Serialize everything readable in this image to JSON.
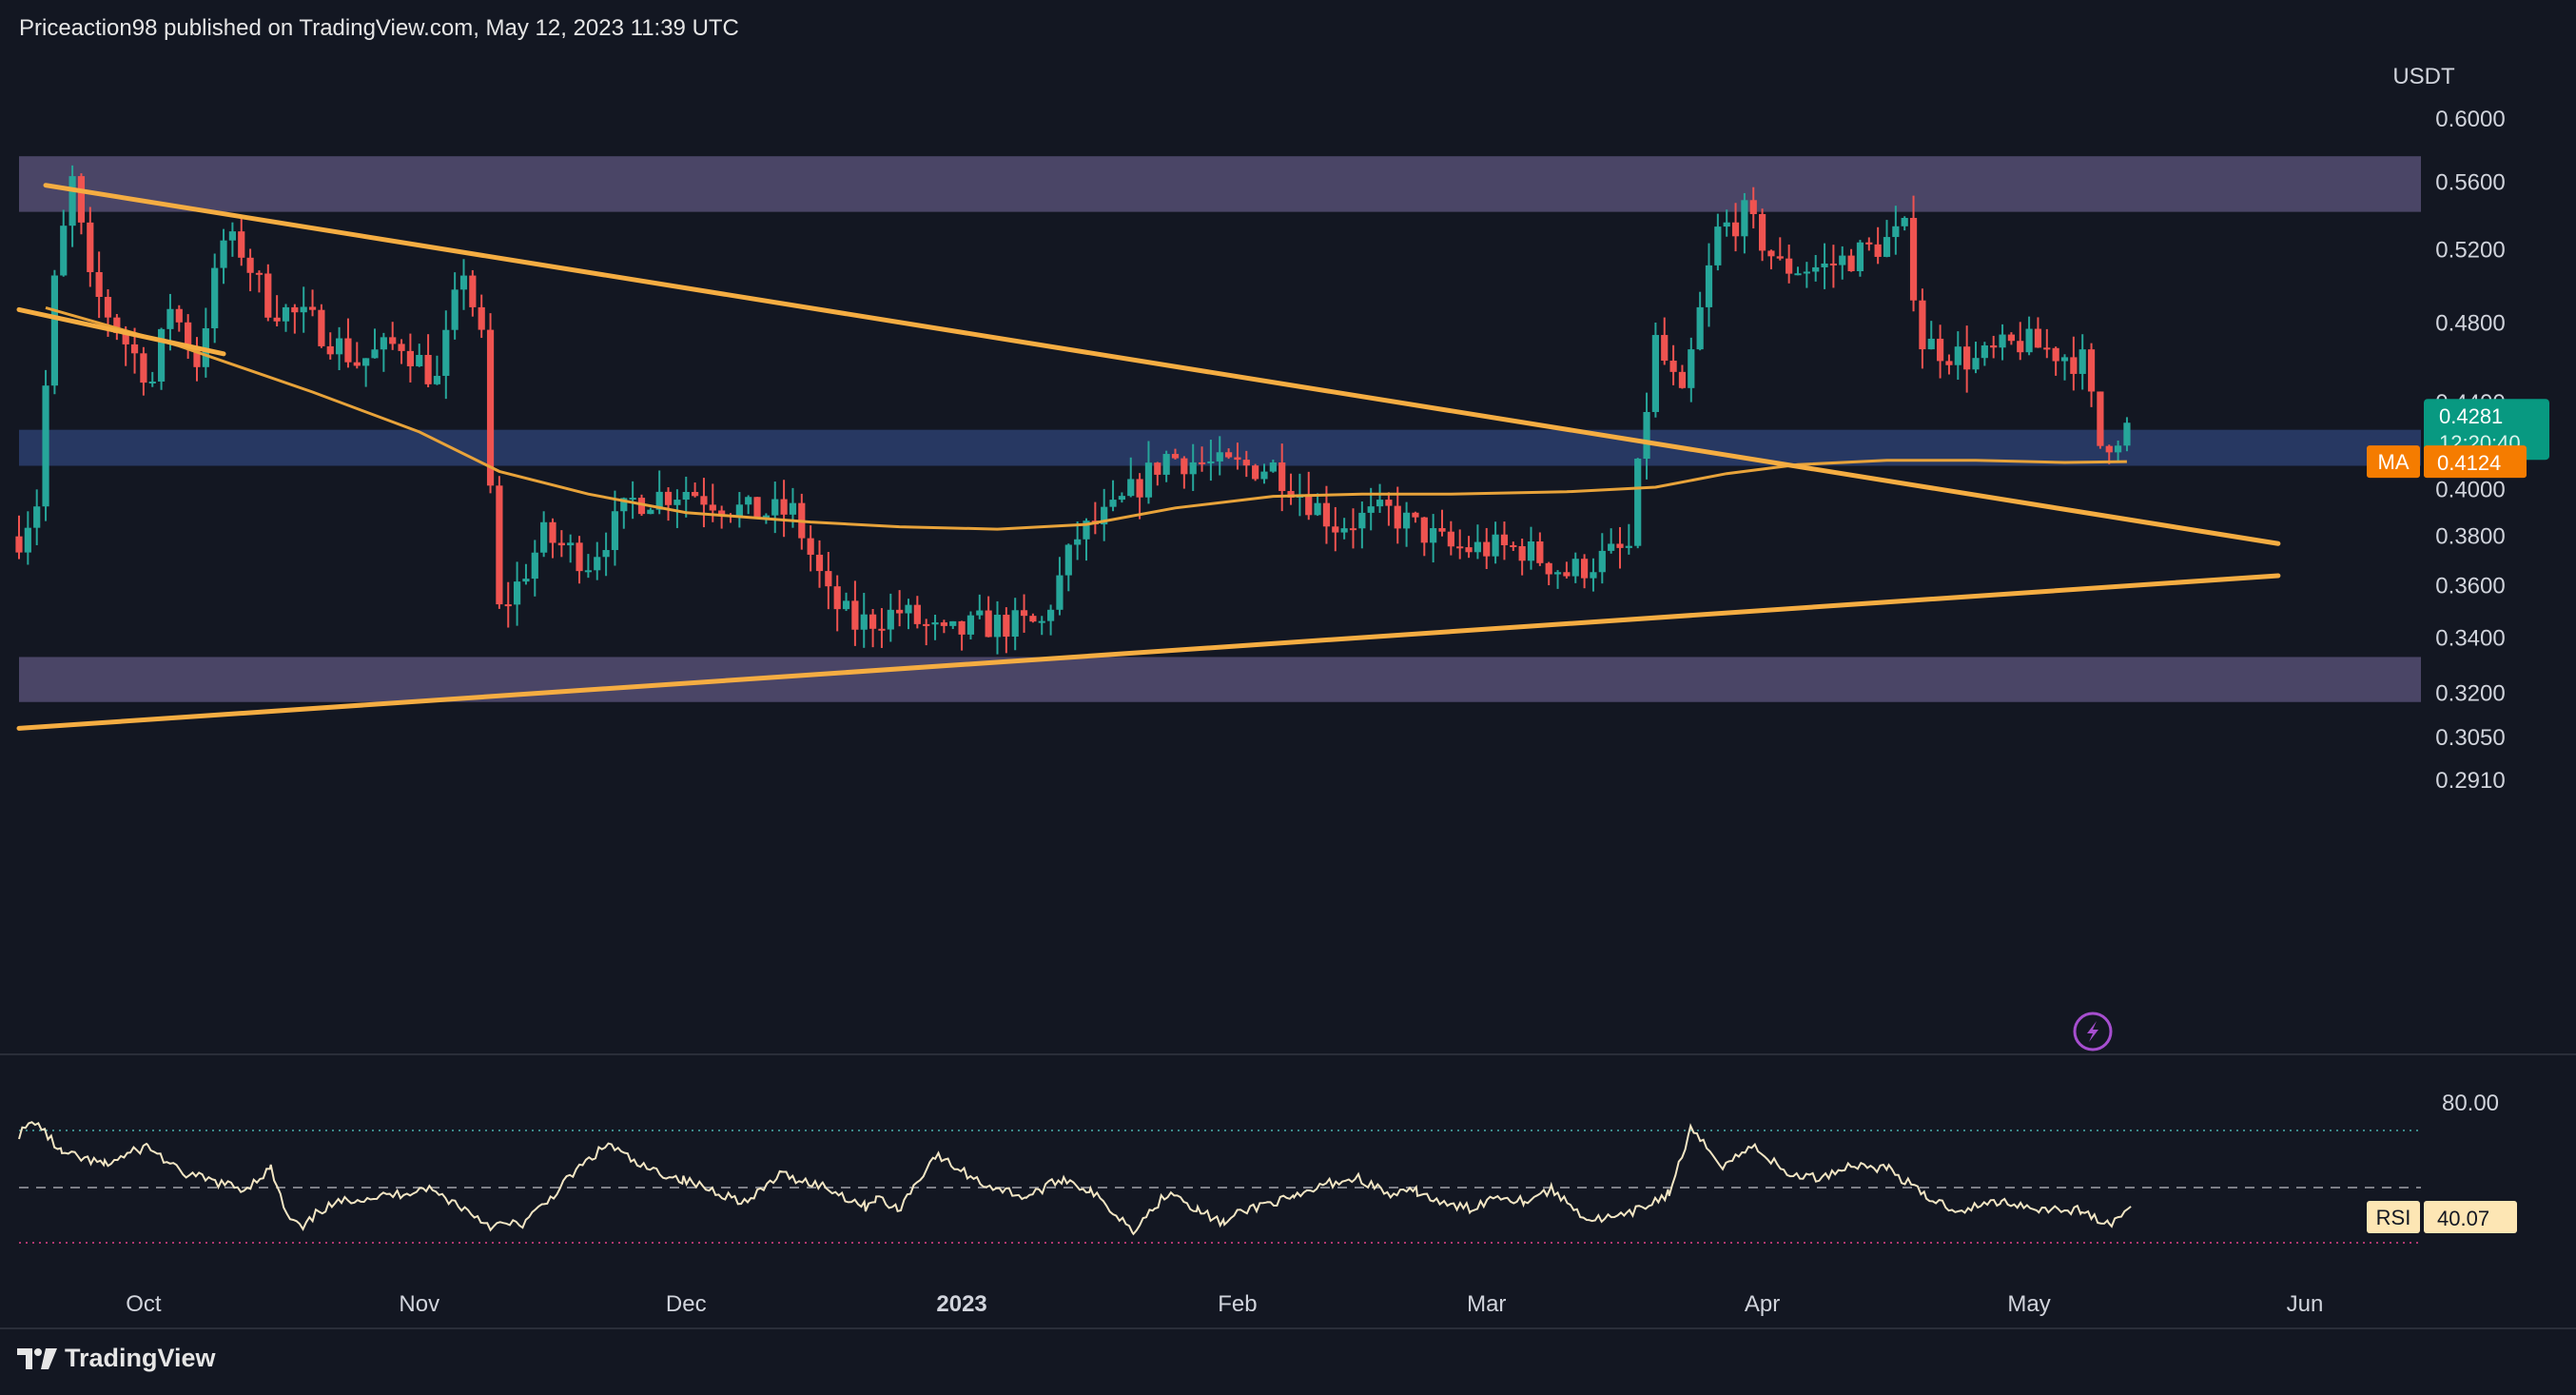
{
  "header": {
    "publisher": "Priceaction98 published on TradingView.com, May 12, 2023 11:39 UTC"
  },
  "brand": {
    "name": "TradingView",
    "icon": "tradingview-logo-icon"
  },
  "colors": {
    "background": "#131722",
    "up": "#26a69a",
    "down": "#ef5350",
    "zone_purple": "#514a6e",
    "zone_blue": "#283a66",
    "trendline": "#f5ad42",
    "ma": "#e8a33a",
    "rsi": "#f3e6c4",
    "price_tag": "#089981",
    "ma_tag": "#f57c00"
  },
  "chart_data": {
    "type": "candlestick",
    "symbol_currency": "USDT",
    "y_axis": {
      "label": "USDT",
      "ticks": [
        0.6,
        0.56,
        0.52,
        0.48,
        0.44,
        0.4,
        0.38,
        0.36,
        0.34,
        0.32,
        0.305,
        0.291
      ],
      "tick_labels": [
        "0.6000",
        "0.5600",
        "0.5200",
        "0.4800",
        "0.4400",
        "0.4000",
        "0.3800",
        "0.3600",
        "0.3400",
        "0.3200",
        "0.3050",
        "0.2910"
      ],
      "scale": "log"
    },
    "x_axis": {
      "labels": [
        "Oct",
        "Nov",
        "Dec",
        "2023",
        "Feb",
        "Mar",
        "Apr",
        "May",
        "Jun"
      ],
      "label_dates": [
        "2022-10-01",
        "2022-11-01",
        "2022-12-01",
        "2023-01-01",
        "2023-02-01",
        "2023-03-01",
        "2023-04-01",
        "2023-05-01",
        "2023-06-01"
      ],
      "range": [
        "2022-09-17",
        "2023-06-22"
      ]
    },
    "last_price": {
      "value": 0.4281,
      "label": "0.4281",
      "countdown": "12:20:40"
    },
    "ma": {
      "name": "MA",
      "value": 0.4124,
      "label": "0.4124",
      "points": [
        [
          "2022-09-20",
          0.488
        ],
        [
          "2022-10-05",
          0.468
        ],
        [
          "2022-10-20",
          0.445
        ],
        [
          "2022-11-01",
          0.426
        ],
        [
          "2022-11-10",
          0.408
        ],
        [
          "2022-11-20",
          0.398
        ],
        [
          "2022-12-01",
          0.39
        ],
        [
          "2022-12-15",
          0.386
        ],
        [
          "2022-12-25",
          0.384
        ],
        [
          "2023-01-05",
          0.383
        ],
        [
          "2023-01-15",
          0.385
        ],
        [
          "2023-01-25",
          0.392
        ],
        [
          "2023-02-05",
          0.397
        ],
        [
          "2023-02-15",
          0.398
        ],
        [
          "2023-02-25",
          0.398
        ],
        [
          "2023-03-10",
          0.399
        ],
        [
          "2023-03-20",
          0.401
        ],
        [
          "2023-03-28",
          0.407
        ],
        [
          "2023-04-05",
          0.411
        ],
        [
          "2023-04-15",
          0.413
        ],
        [
          "2023-04-25",
          0.413
        ],
        [
          "2023-05-05",
          0.412
        ],
        [
          "2023-05-12",
          0.4124
        ]
      ]
    },
    "zones": [
      {
        "from": 0.542,
        "to": 0.576,
        "color": "purple"
      },
      {
        "from": 0.4105,
        "to": 0.427,
        "color": "blue"
      },
      {
        "from": 0.317,
        "to": 0.333,
        "color": "purple"
      }
    ],
    "trendlines": [
      {
        "from": [
          "2022-09-20",
          0.558
        ],
        "to": [
          "2023-05-29",
          0.377
        ]
      },
      {
        "from": [
          "2022-09-17",
          0.308
        ],
        "to": [
          "2023-05-29",
          0.364
        ]
      },
      {
        "from": [
          "2022-09-17",
          0.487
        ],
        "to": [
          "2022-10-10",
          0.464
        ]
      }
    ],
    "candles_anchor": [
      [
        "2022-09-17",
        0.38
      ],
      [
        "2022-09-19",
        0.395
      ],
      [
        "2022-09-21",
        0.5
      ],
      [
        "2022-09-23",
        0.56
      ],
      [
        "2022-09-25",
        0.5
      ],
      [
        "2022-09-29",
        0.47
      ],
      [
        "2022-10-02",
        0.45
      ],
      [
        "2022-10-04",
        0.49
      ],
      [
        "2022-10-07",
        0.46
      ],
      [
        "2022-10-10",
        0.525
      ],
      [
        "2022-10-12",
        0.52
      ],
      [
        "2022-10-15",
        0.49
      ],
      [
        "2022-10-20",
        0.48
      ],
      [
        "2022-10-25",
        0.46
      ],
      [
        "2022-10-30",
        0.47
      ],
      [
        "2022-11-03",
        0.45
      ],
      [
        "2022-11-06",
        0.51
      ],
      [
        "2022-11-08",
        0.47
      ],
      [
        "2022-11-09",
        0.4
      ],
      [
        "2022-11-10",
        0.35
      ],
      [
        "2022-11-12",
        0.36
      ],
      [
        "2022-11-15",
        0.38
      ],
      [
        "2022-11-20",
        0.37
      ],
      [
        "2022-11-25",
        0.395
      ],
      [
        "2022-12-01",
        0.4
      ],
      [
        "2022-12-08",
        0.39
      ],
      [
        "2022-12-13",
        0.39
      ],
      [
        "2022-12-17",
        0.355
      ],
      [
        "2022-12-20",
        0.345
      ],
      [
        "2022-12-25",
        0.35
      ],
      [
        "2022-12-30",
        0.34
      ],
      [
        "2023-01-03",
        0.345
      ],
      [
        "2023-01-10",
        0.345
      ],
      [
        "2023-01-14",
        0.38
      ],
      [
        "2023-01-18",
        0.39
      ],
      [
        "2023-01-24",
        0.415
      ],
      [
        "2023-01-30",
        0.41
      ],
      [
        "2023-02-05",
        0.41
      ],
      [
        "2023-02-12",
        0.385
      ],
      [
        "2023-02-18",
        0.39
      ],
      [
        "2023-02-25",
        0.375
      ],
      [
        "2023-03-05",
        0.375
      ],
      [
        "2023-03-10",
        0.365
      ],
      [
        "2023-03-17",
        0.375
      ],
      [
        "2023-03-20",
        0.47
      ],
      [
        "2023-03-23",
        0.44
      ],
      [
        "2023-03-27",
        0.53
      ],
      [
        "2023-03-30",
        0.54
      ],
      [
        "2023-04-03",
        0.51
      ],
      [
        "2023-04-08",
        0.51
      ],
      [
        "2023-04-13",
        0.52
      ],
      [
        "2023-04-17",
        0.53
      ],
      [
        "2023-04-19",
        0.47
      ],
      [
        "2023-04-25",
        0.46
      ],
      [
        "2023-04-30",
        0.47
      ],
      [
        "2023-05-04",
        0.465
      ],
      [
        "2023-05-07",
        0.46
      ],
      [
        "2023-05-09",
        0.42
      ],
      [
        "2023-05-12",
        0.428
      ]
    ]
  },
  "rsi": {
    "name": "RSI",
    "value": 40.07,
    "label": "40.07",
    "upper": 80,
    "upper_label": "80.00",
    "lower": 30,
    "mid": 50
  },
  "icons": {
    "lightning": "lightning-icon"
  }
}
